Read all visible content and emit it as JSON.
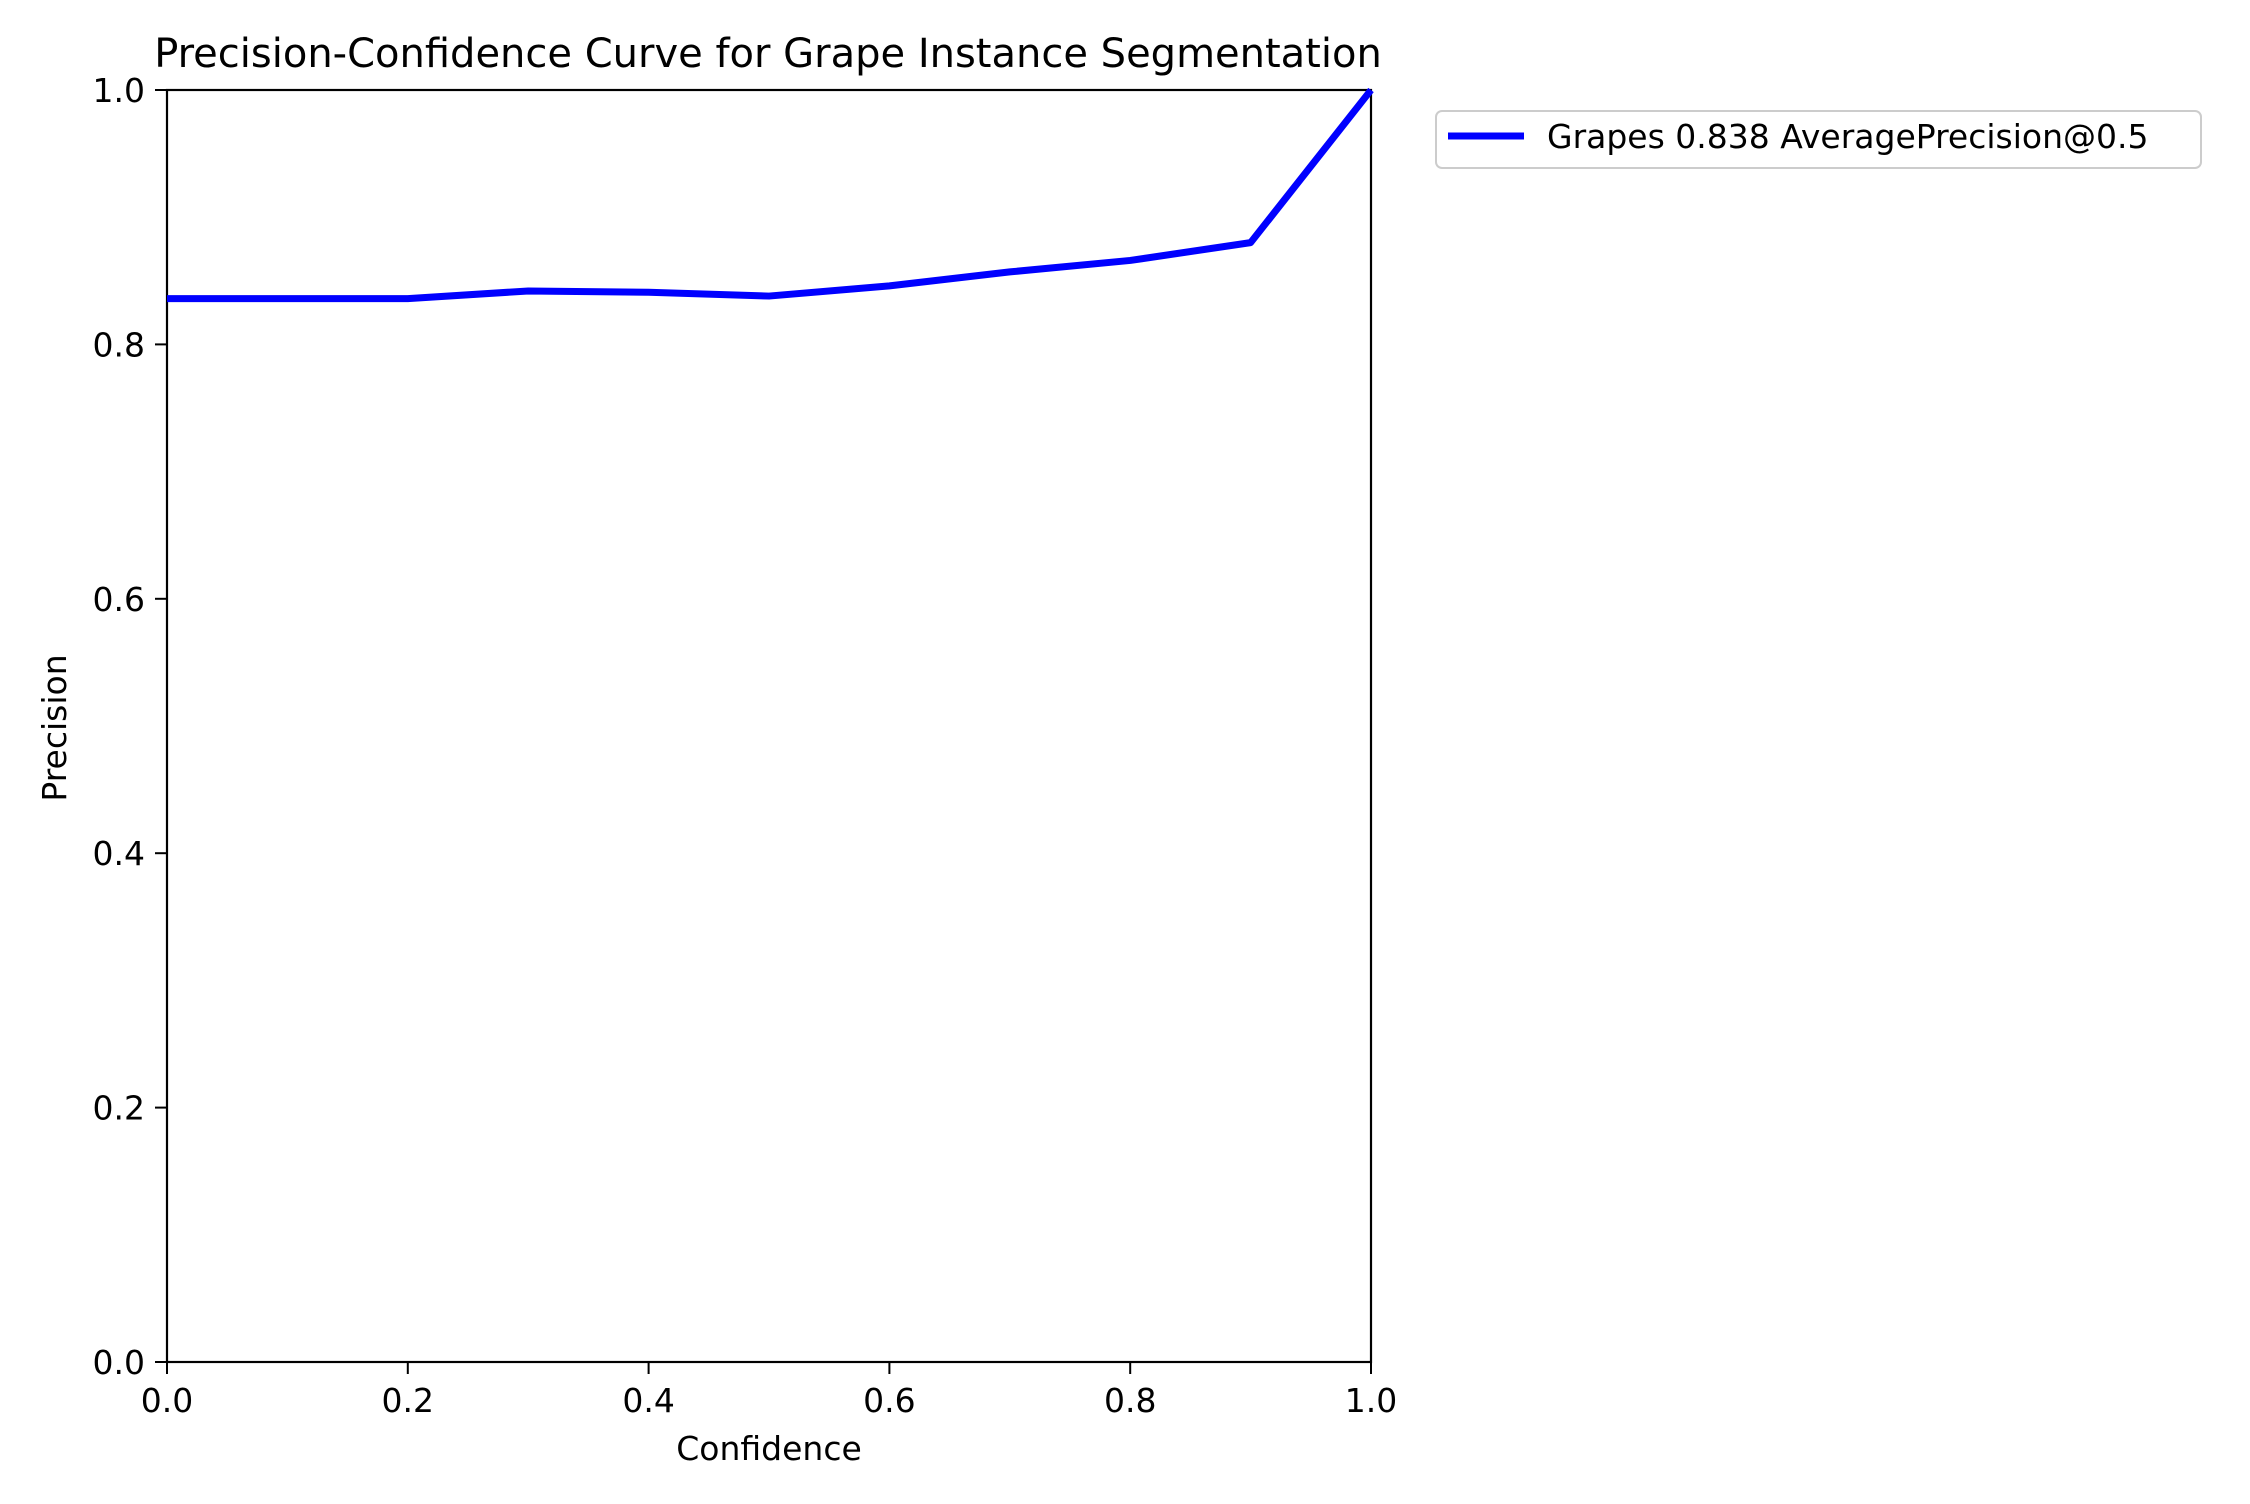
{
  "chart_data": {
    "type": "line",
    "title": "Precision-Confidence Curve for Grape Instance Segmentation",
    "xlabel": "Confidence",
    "ylabel": "Precision",
    "xlim": [
      0.0,
      1.0
    ],
    "ylim": [
      0.0,
      1.0
    ],
    "x_ticks": [
      "0.0",
      "0.2",
      "0.4",
      "0.6",
      "0.8",
      "1.0"
    ],
    "y_ticks": [
      "0.0",
      "0.2",
      "0.4",
      "0.6",
      "0.8",
      "1.0"
    ],
    "grid": false,
    "legend_position": "outside upper right",
    "series": [
      {
        "name": "Grapes 0.838 AveragePrecision@0.5",
        "color": "#0000ff",
        "x": [
          0.0,
          0.1,
          0.2,
          0.3,
          0.4,
          0.5,
          0.6,
          0.7,
          0.8,
          0.9,
          1.0
        ],
        "y": [
          0.836,
          0.836,
          0.836,
          0.842,
          0.841,
          0.838,
          0.846,
          0.857,
          0.866,
          0.88,
          1.0
        ]
      }
    ]
  }
}
